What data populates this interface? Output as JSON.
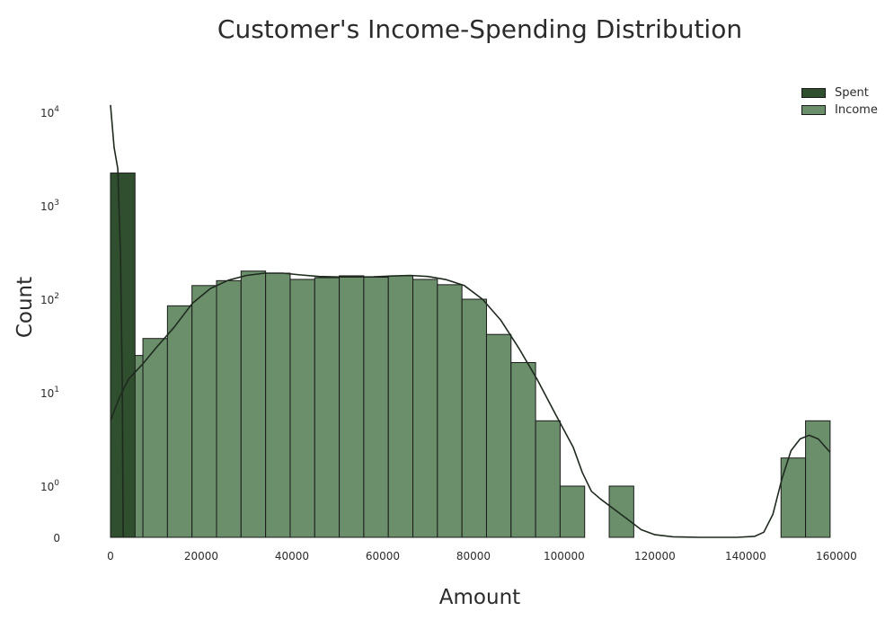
{
  "chart_data": {
    "type": "histogram",
    "title": "Customer's Income-Spending Distribution",
    "xlabel": "Amount",
    "ylabel": "Count",
    "yscale": "symlog",
    "xlim": [
      0,
      163000
    ],
    "x_ticks": [
      0,
      20000,
      40000,
      60000,
      80000,
      100000,
      120000,
      140000,
      160000
    ],
    "y_ticks": [
      {
        "value": 0,
        "label": "0"
      },
      {
        "value": 1,
        "label": "10",
        "exp": "0"
      },
      {
        "value": 10,
        "label": "10",
        "exp": "1"
      },
      {
        "value": 100,
        "label": "10",
        "exp": "2"
      },
      {
        "value": 1000,
        "label": "10",
        "exp": "3"
      },
      {
        "value": 10000,
        "label": "10",
        "exp": "4"
      }
    ],
    "legend_position": "top-right",
    "series": [
      {
        "name": "Spent",
        "color": "#2f4f2f",
        "bins": [
          {
            "x0": 0,
            "x1": 5400,
            "count": 2240
          }
        ],
        "kde": [
          [
            0,
            12000
          ],
          [
            800,
            4200
          ],
          [
            1600,
            2500
          ],
          [
            2200,
            300
          ],
          [
            2600,
            12
          ],
          [
            2800,
            0
          ]
        ]
      },
      {
        "name": "Income",
        "color": "#6b8f6b",
        "bins": [
          {
            "x0": 1730,
            "x1": 7140,
            "count": 25
          },
          {
            "x0": 7140,
            "x1": 12550,
            "count": 38
          },
          {
            "x0": 12550,
            "x1": 17960,
            "count": 85
          },
          {
            "x0": 17960,
            "x1": 23370,
            "count": 140
          },
          {
            "x0": 23370,
            "x1": 28780,
            "count": 158
          },
          {
            "x0": 28780,
            "x1": 34190,
            "count": 200
          },
          {
            "x0": 34190,
            "x1": 39600,
            "count": 190
          },
          {
            "x0": 39600,
            "x1": 45010,
            "count": 163
          },
          {
            "x0": 45010,
            "x1": 50420,
            "count": 170
          },
          {
            "x0": 50420,
            "x1": 55830,
            "count": 178
          },
          {
            "x0": 55830,
            "x1": 61240,
            "count": 172
          },
          {
            "x0": 61240,
            "x1": 66650,
            "count": 178
          },
          {
            "x0": 66650,
            "x1": 72060,
            "count": 163
          },
          {
            "x0": 72060,
            "x1": 77470,
            "count": 143
          },
          {
            "x0": 77470,
            "x1": 82880,
            "count": 100
          },
          {
            "x0": 82880,
            "x1": 88290,
            "count": 42
          },
          {
            "x0": 88290,
            "x1": 93700,
            "count": 21
          },
          {
            "x0": 93700,
            "x1": 99110,
            "count": 5
          },
          {
            "x0": 99110,
            "x1": 104520,
            "count": 1
          },
          {
            "x0": 104520,
            "x1": 109930,
            "count": 0
          },
          {
            "x0": 109930,
            "x1": 115340,
            "count": 1
          },
          {
            "x0": 115340,
            "x1": 120750,
            "count": 0
          },
          {
            "x0": 120750,
            "x1": 126160,
            "count": 0
          },
          {
            "x0": 126160,
            "x1": 131570,
            "count": 0
          },
          {
            "x0": 131570,
            "x1": 136980,
            "count": 0
          },
          {
            "x0": 136980,
            "x1": 142390,
            "count": 0
          },
          {
            "x0": 142390,
            "x1": 147800,
            "count": 0
          },
          {
            "x0": 147800,
            "x1": 153210,
            "count": 2
          },
          {
            "x0": 153210,
            "x1": 158620,
            "count": 5
          }
        ],
        "kde": [
          [
            0,
            5
          ],
          [
            2000,
            9
          ],
          [
            4000,
            14
          ],
          [
            7000,
            20
          ],
          [
            10000,
            30
          ],
          [
            14000,
            50
          ],
          [
            18000,
            90
          ],
          [
            22000,
            130
          ],
          [
            26000,
            160
          ],
          [
            30000,
            180
          ],
          [
            34000,
            190
          ],
          [
            38000,
            190
          ],
          [
            42000,
            182
          ],
          [
            46000,
            175
          ],
          [
            50000,
            173
          ],
          [
            54000,
            173
          ],
          [
            58000,
            174
          ],
          [
            62000,
            177
          ],
          [
            66000,
            180
          ],
          [
            70000,
            175
          ],
          [
            74000,
            162
          ],
          [
            78000,
            140
          ],
          [
            82000,
            100
          ],
          [
            86000,
            60
          ],
          [
            90000,
            30
          ],
          [
            94000,
            14
          ],
          [
            98000,
            6
          ],
          [
            102000,
            2.6
          ],
          [
            104000,
            1.4
          ],
          [
            106000,
            0.9
          ],
          [
            108000,
            0.75
          ],
          [
            111000,
            0.55
          ],
          [
            114000,
            0.35
          ],
          [
            117000,
            0.15
          ],
          [
            120000,
            0.05
          ],
          [
            124000,
            0.01
          ],
          [
            130000,
            0
          ],
          [
            138000,
            0
          ],
          [
            142000,
            0.02
          ],
          [
            144000,
            0.1
          ],
          [
            146000,
            0.45
          ],
          [
            148000,
            1.2
          ],
          [
            150000,
            2.4
          ],
          [
            152000,
            3.2
          ],
          [
            154000,
            3.5
          ],
          [
            156000,
            3.2
          ],
          [
            158620,
            2.3
          ]
        ]
      }
    ]
  }
}
